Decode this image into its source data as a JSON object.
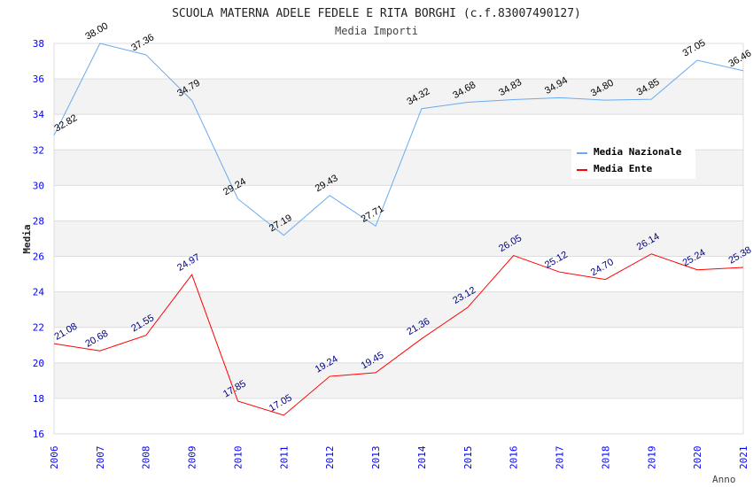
{
  "chart_data": {
    "type": "line",
    "title": "SCUOLA MATERNA ADELE FEDELE E RITA BORGHI (c.f.83007490127)",
    "subtitle": "Media Importi",
    "xlabel": "Anno",
    "ylabel": "Media",
    "ylim": [
      16,
      38
    ],
    "yticks": [
      "16",
      "18",
      "20",
      "22",
      "24",
      "26",
      "28",
      "30",
      "32",
      "34",
      "36",
      "38"
    ],
    "x": [
      "2006",
      "2007",
      "2008",
      "2009",
      "2010",
      "2011",
      "2012",
      "2013",
      "2014",
      "2015",
      "2016",
      "2017",
      "2018",
      "2019",
      "2020",
      "2021"
    ],
    "legend_position": "top-right",
    "series": [
      {
        "name": "Media Nazionale",
        "color": "#6aaaf0",
        "label_color": "#000000",
        "values": [
          32.82,
          38.0,
          37.36,
          34.79,
          29.24,
          27.19,
          29.43,
          27.71,
          34.32,
          34.68,
          34.83,
          34.94,
          34.8,
          34.85,
          37.05,
          36.46
        ],
        "labels": [
          "32.82",
          "38.00",
          "37.36",
          "34.79",
          "29.24",
          "27.19",
          "29.43",
          "27.71",
          "34.32",
          "34.68",
          "34.83",
          "34.94",
          "34.80",
          "34.85",
          "37.05",
          "36.46"
        ]
      },
      {
        "name": "Media Ente",
        "color": "#ff0000",
        "label_color": "#000080",
        "values": [
          21.08,
          20.68,
          21.55,
          24.97,
          17.85,
          17.05,
          19.24,
          19.45,
          21.36,
          23.12,
          26.05,
          25.12,
          24.7,
          26.14,
          25.24,
          25.38
        ],
        "labels": [
          "21.08",
          "20.68",
          "21.55",
          "24.97",
          "17.85",
          "17.05",
          "19.24",
          "19.45",
          "21.36",
          "23.12",
          "26.05",
          "25.12",
          "24.70",
          "26.14",
          "25.24",
          "25.38"
        ]
      }
    ]
  }
}
